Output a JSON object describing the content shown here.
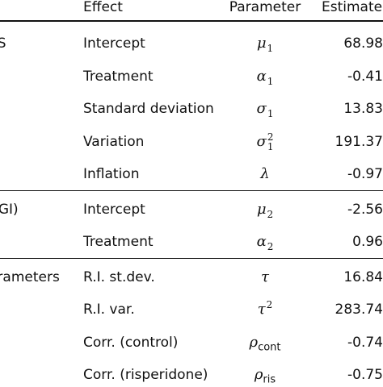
{
  "header": {
    "effect": "Effect",
    "parameter": "Parameter",
    "estimate": "Estimate"
  },
  "sections": [
    {
      "group_label": "SS",
      "rows": [
        {
          "effect": "Intercept",
          "sym": "μ",
          "sub": "1",
          "sup": "",
          "sub_upright": "",
          "estimate": "68.98"
        },
        {
          "effect": "Treatment",
          "sym": "α",
          "sub": "1",
          "sup": "",
          "sub_upright": "",
          "estimate": "-0.41"
        },
        {
          "effect": "Standard deviation",
          "sym": "σ",
          "sub": "1",
          "sup": "",
          "sub_upright": "",
          "estimate": "13.83"
        },
        {
          "effect": "Variation",
          "sym": "σ",
          "sub": "1",
          "sup": "2",
          "sub_upright": "",
          "estimate": "191.37"
        },
        {
          "effect": "Inflation",
          "sym": "λ",
          "sub": "",
          "sup": "",
          "sub_upright": "",
          "estimate": "-0.97"
        }
      ]
    },
    {
      "group_label": "CGI)",
      "rows": [
        {
          "effect": "Intercept",
          "sym": "μ",
          "sub": "2",
          "sup": "",
          "sub_upright": "",
          "estimate": "-2.56"
        },
        {
          "effect": "Treatment",
          "sym": "α",
          "sub": "2",
          "sup": "",
          "sub_upright": "",
          "estimate": "0.96"
        }
      ]
    },
    {
      "group_label": "arameters",
      "rows": [
        {
          "effect": "R.I. st.dev.",
          "sym": "τ",
          "sub": "",
          "sup": "",
          "sub_upright": "",
          "estimate": "16.84"
        },
        {
          "effect": "R.I. var.",
          "sym": "τ",
          "sub": "",
          "sup": "2",
          "sub_upright": "",
          "estimate": "283.74"
        },
        {
          "effect": "Corr. (control)",
          "sym": "ρ",
          "sub": "",
          "sup": "",
          "sub_upright": "cont",
          "estimate": "-0.74"
        },
        {
          "effect": "Corr. (risperidone)",
          "sym": "ρ",
          "sub": "",
          "sup": "",
          "sub_upright": "ris",
          "estimate": "-0.75"
        }
      ]
    }
  ]
}
